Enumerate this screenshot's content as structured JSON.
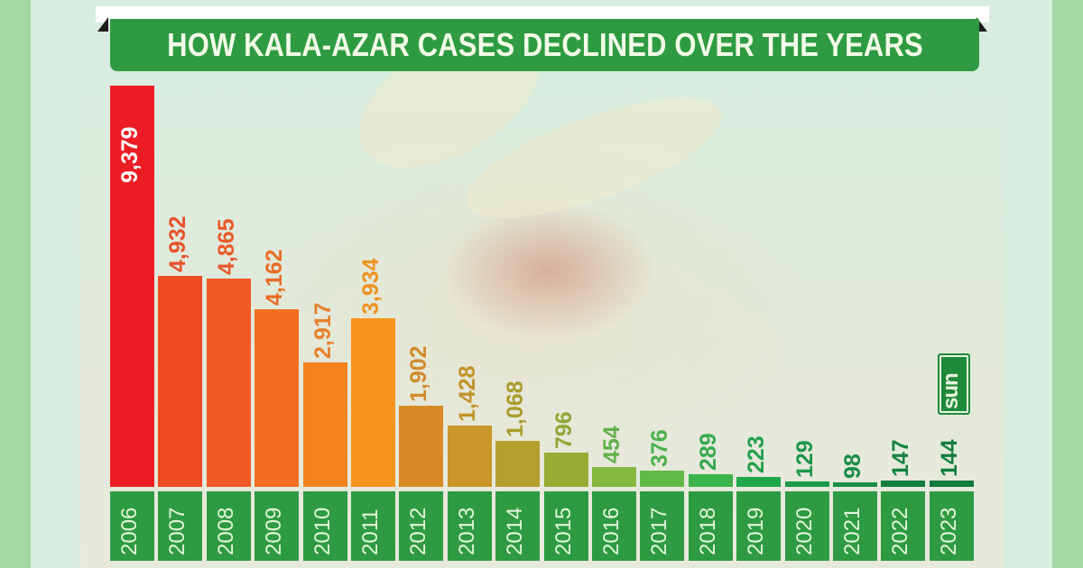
{
  "title": "HOW KALA-AZAR CASES DECLINED OVER THE YEARS",
  "logo": "sun",
  "colors": {
    "title_bg": "#2e9b42",
    "year_box_bg": "#2e9b42",
    "outer_border": "#a3d8a5",
    "panel_bg": "#d8ede0"
  },
  "chart_data": {
    "type": "bar",
    "title": "HOW KALA-AZAR CASES DECLINED OVER THE YEARS",
    "xlabel": "",
    "ylabel": "",
    "grid": false,
    "legend": null,
    "categories": [
      "2006",
      "2007",
      "2008",
      "2009",
      "2010",
      "2011",
      "2012",
      "2013",
      "2014",
      "2015",
      "2016",
      "2017",
      "2018",
      "2019",
      "2020",
      "2021",
      "2022",
      "2023"
    ],
    "values": [
      9379,
      4932,
      4865,
      4162,
      2917,
      3934,
      1902,
      1428,
      1068,
      796,
      454,
      376,
      289,
      223,
      129,
      98,
      147,
      144
    ],
    "labels": [
      "9,379",
      "4,932",
      "4,865",
      "4,162",
      "2,917",
      "3,934",
      "1,902",
      "1,428",
      "1,068",
      "796",
      "454",
      "376",
      "289",
      "223",
      "129",
      "98",
      "147",
      "144"
    ],
    "bar_colors": [
      "#ec1c24",
      "#ee4a23",
      "#f05a24",
      "#f26f22",
      "#f4821f",
      "#f7941d",
      "#d98a27",
      "#c9962a",
      "#b4a02e",
      "#9aab35",
      "#86b940",
      "#63b946",
      "#3cb44b",
      "#1ea84a",
      "#1a9a48",
      "#168f44",
      "#137f3e",
      "#11793b"
    ],
    "label_colors": [
      "#ffffff",
      "#e8512a",
      "#e95a28",
      "#ea6d26",
      "#e8802a",
      "#ef9220",
      "#d18a2a",
      "#c29228",
      "#a99c2c",
      "#8fa833",
      "#62b04a",
      "#4cb14c",
      "#33aa4c",
      "#23a04c",
      "#1c9648",
      "#178c45",
      "#148340",
      "#127d3d"
    ],
    "ylim": [
      0,
      9379
    ]
  }
}
